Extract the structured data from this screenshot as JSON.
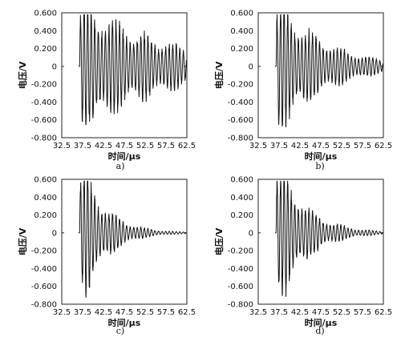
{
  "chart_data": [
    {
      "type": "line",
      "panel_label": "a)",
      "xlabel": "时间/μs",
      "ylabel": "电压/V",
      "xlim": [
        32.5,
        62.5
      ],
      "ylim": [
        -0.8,
        0.6
      ],
      "x_ticks": [
        "32.5",
        "37.5",
        "42.5",
        "47.5",
        "52.5",
        "57.5",
        "62.5"
      ],
      "y_ticks": [
        "0.600",
        "0.400",
        "0.200",
        "0",
        "-0.200",
        "-0.400",
        "-0.600",
        "-0.800"
      ],
      "x_tick_values": [
        32.5,
        37.5,
        42.5,
        47.5,
        52.5,
        57.5,
        62.5
      ],
      "y_tick_values": [
        0.6,
        0.4,
        0.2,
        0,
        -0.2,
        -0.4,
        -0.6,
        -0.8
      ],
      "series": [
        {
          "signal": {
            "onset_us": 36.8,
            "period_us": 0.85,
            "peak_v": 0.52,
            "decay_us": 20.0,
            "plateau_until_us": 40.2,
            "residual_v": 0.06
          }
        }
      ]
    },
    {
      "type": "line",
      "panel_label": "b)",
      "xlabel": "时间/μs",
      "ylabel": "电压/V",
      "xlim": [
        32.5,
        62.5
      ],
      "ylim": [
        -0.8,
        0.6
      ],
      "x_ticks": [
        "32.5",
        "37.5",
        "42.5",
        "47.5",
        "52.5",
        "57.5",
        "62.5"
      ],
      "y_ticks": [
        "0.600",
        "0.400",
        "0.200",
        "0",
        "-0.200",
        "-0.400",
        "-0.600",
        "-0.800"
      ],
      "x_tick_values": [
        32.5,
        37.5,
        42.5,
        47.5,
        52.5,
        57.5,
        62.5
      ],
      "y_tick_values": [
        0.6,
        0.4,
        0.2,
        0,
        -0.2,
        -0.4,
        -0.6,
        -0.8
      ],
      "series": [
        {
          "signal": {
            "onset_us": 36.8,
            "period_us": 0.85,
            "peak_v": 0.52,
            "decay_us": 11.0,
            "plateau_until_us": 39.2,
            "residual_v": 0.02
          }
        }
      ]
    },
    {
      "type": "line",
      "panel_label": "c)",
      "xlabel": "时间/μs",
      "ylabel": "电压/V",
      "xlim": [
        32.5,
        62.5
      ],
      "ylim": [
        -0.8,
        0.6
      ],
      "x_ticks": [
        "32.5",
        "37.5",
        "42.5",
        "47.5",
        "52.5",
        "57.5",
        "62.5"
      ],
      "y_ticks": [
        "0.600",
        "0.400",
        "0.200",
        "0",
        "-0.200",
        "-0.400",
        "-0.600",
        "-0.800"
      ],
      "x_tick_values": [
        32.5,
        37.5,
        42.5,
        47.5,
        52.5,
        57.5,
        62.5
      ],
      "y_tick_values": [
        0.6,
        0.4,
        0.2,
        0,
        -0.2,
        -0.4,
        -0.6,
        -0.8
      ],
      "series": [
        {
          "signal": {
            "onset_us": 36.8,
            "period_us": 0.85,
            "peak_v": 0.51,
            "decay_us": 5.5,
            "plateau_until_us": 39.0,
            "residual_v": 0.01
          }
        }
      ]
    },
    {
      "type": "line",
      "panel_label": "d)",
      "xlabel": "时间/μs",
      "ylabel": "电压/V",
      "xlim": [
        32.5,
        62.5
      ],
      "ylim": [
        -0.8,
        0.6
      ],
      "x_ticks": [
        "32.5",
        "37.5",
        "42.5",
        "47.5",
        "52.5",
        "57.5",
        "62.5"
      ],
      "y_ticks": [
        "0.600",
        "0.400",
        "0.200",
        "0",
        "-0.200",
        "-0.400",
        "-0.600",
        "-0.800"
      ],
      "x_tick_values": [
        32.5,
        37.5,
        42.5,
        47.5,
        52.5,
        57.5,
        62.5
      ],
      "y_tick_values": [
        0.6,
        0.4,
        0.2,
        0,
        -0.2,
        -0.4,
        -0.6,
        -0.8
      ],
      "series": [
        {
          "signal": {
            "onset_us": 36.8,
            "period_us": 0.85,
            "peak_v": 0.52,
            "decay_us": 6.5,
            "plateau_until_us": 39.2,
            "residual_v": 0.015
          }
        }
      ]
    }
  ]
}
